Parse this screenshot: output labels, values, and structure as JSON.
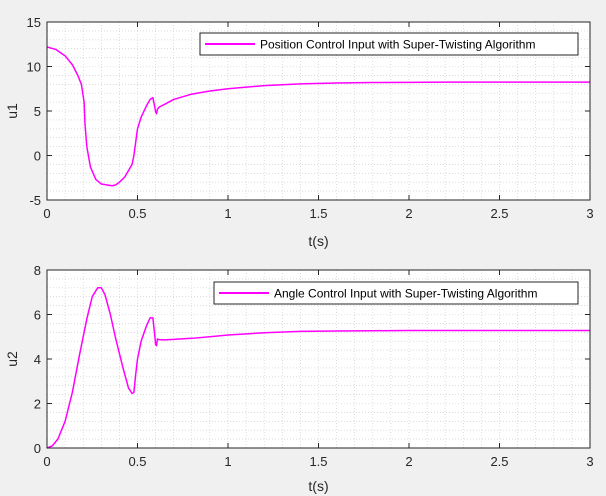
{
  "figure": {
    "background": "#f0f0f0",
    "plot_background": "#ffffff",
    "line_color": "#ff00ff",
    "axis_color": "#262626"
  },
  "chart_data": [
    {
      "type": "line",
      "xlabel": "t(s)",
      "ylabel": "u1",
      "xlim": [
        0,
        3
      ],
      "ylim": [
        -5,
        15
      ],
      "xticks": [
        0,
        0.5,
        1,
        1.5,
        2,
        2.5,
        3
      ],
      "xtick_labels": [
        "0",
        "0.5",
        "1",
        "1.5",
        "2",
        "2.5",
        "3"
      ],
      "yticks": [
        -5,
        0,
        5,
        10,
        15
      ],
      "ytick_labels": [
        "-5",
        "0",
        "5",
        "10",
        "15"
      ],
      "grid": "minor dotted",
      "legend_position": "top-right",
      "series": [
        {
          "name": "Position Control Input with Super-Twisting Algorithm",
          "color": "#ff00ff",
          "x": [
            0,
            0.05,
            0.1,
            0.14,
            0.17,
            0.19,
            0.205,
            0.21,
            0.22,
            0.24,
            0.27,
            0.3,
            0.33,
            0.36,
            0.38,
            0.4,
            0.43,
            0.45,
            0.47,
            0.48,
            0.49,
            0.5,
            0.52,
            0.55,
            0.57,
            0.585,
            0.595,
            0.6,
            0.605,
            0.61,
            0.62,
            0.65,
            0.7,
            0.8,
            0.9,
            1.0,
            1.2,
            1.4,
            1.6,
            1.8,
            2.0,
            2.2,
            2.5,
            2.8,
            3.0
          ],
          "y": [
            12.2,
            11.9,
            11.2,
            10.2,
            9.0,
            8.0,
            6.0,
            3.5,
            1.0,
            -1.3,
            -2.7,
            -3.2,
            -3.3,
            -3.4,
            -3.3,
            -3.0,
            -2.4,
            -1.7,
            -1.0,
            0.0,
            1.5,
            3.0,
            4.3,
            5.6,
            6.3,
            6.5,
            5.5,
            4.9,
            4.7,
            5.2,
            5.45,
            5.75,
            6.3,
            6.9,
            7.25,
            7.5,
            7.85,
            8.05,
            8.15,
            8.2,
            8.22,
            8.24,
            8.25,
            8.25,
            8.25
          ]
        }
      ]
    },
    {
      "type": "line",
      "xlabel": "t(s)",
      "ylabel": "u2",
      "xlim": [
        0,
        3
      ],
      "ylim": [
        0,
        8
      ],
      "xticks": [
        0,
        0.5,
        1,
        1.5,
        2,
        2.5,
        3
      ],
      "xtick_labels": [
        "0",
        "0.5",
        "1",
        "1.5",
        "2",
        "2.5",
        "3"
      ],
      "yticks": [
        0,
        2,
        4,
        6,
        8
      ],
      "ytick_labels": [
        "0",
        "2",
        "4",
        "6",
        "8"
      ],
      "grid": "minor dotted",
      "legend_position": "top-right",
      "series": [
        {
          "name": "Angle Control Input with Super-Twisting Algorithm",
          "color": "#ff00ff",
          "x": [
            0,
            0.03,
            0.06,
            0.1,
            0.14,
            0.18,
            0.22,
            0.25,
            0.28,
            0.3,
            0.32,
            0.35,
            0.38,
            0.42,
            0.45,
            0.47,
            0.48,
            0.49,
            0.5,
            0.52,
            0.55,
            0.57,
            0.585,
            0.595,
            0.6,
            0.605,
            0.61,
            0.615,
            0.62,
            0.65,
            0.7,
            0.8,
            0.9,
            1.0,
            1.2,
            1.4,
            1.6,
            1.8,
            2.0,
            2.5,
            3.0
          ],
          "y": [
            0,
            0.1,
            0.4,
            1.2,
            2.5,
            4.2,
            5.8,
            6.8,
            7.2,
            7.2,
            6.9,
            6.0,
            4.9,
            3.6,
            2.7,
            2.45,
            2.5,
            3.3,
            4.0,
            4.8,
            5.5,
            5.85,
            5.85,
            5.1,
            4.65,
            4.6,
            4.9,
            4.88,
            4.87,
            4.86,
            4.88,
            4.93,
            5.0,
            5.08,
            5.18,
            5.24,
            5.26,
            5.27,
            5.28,
            5.28,
            5.28
          ]
        }
      ]
    }
  ]
}
